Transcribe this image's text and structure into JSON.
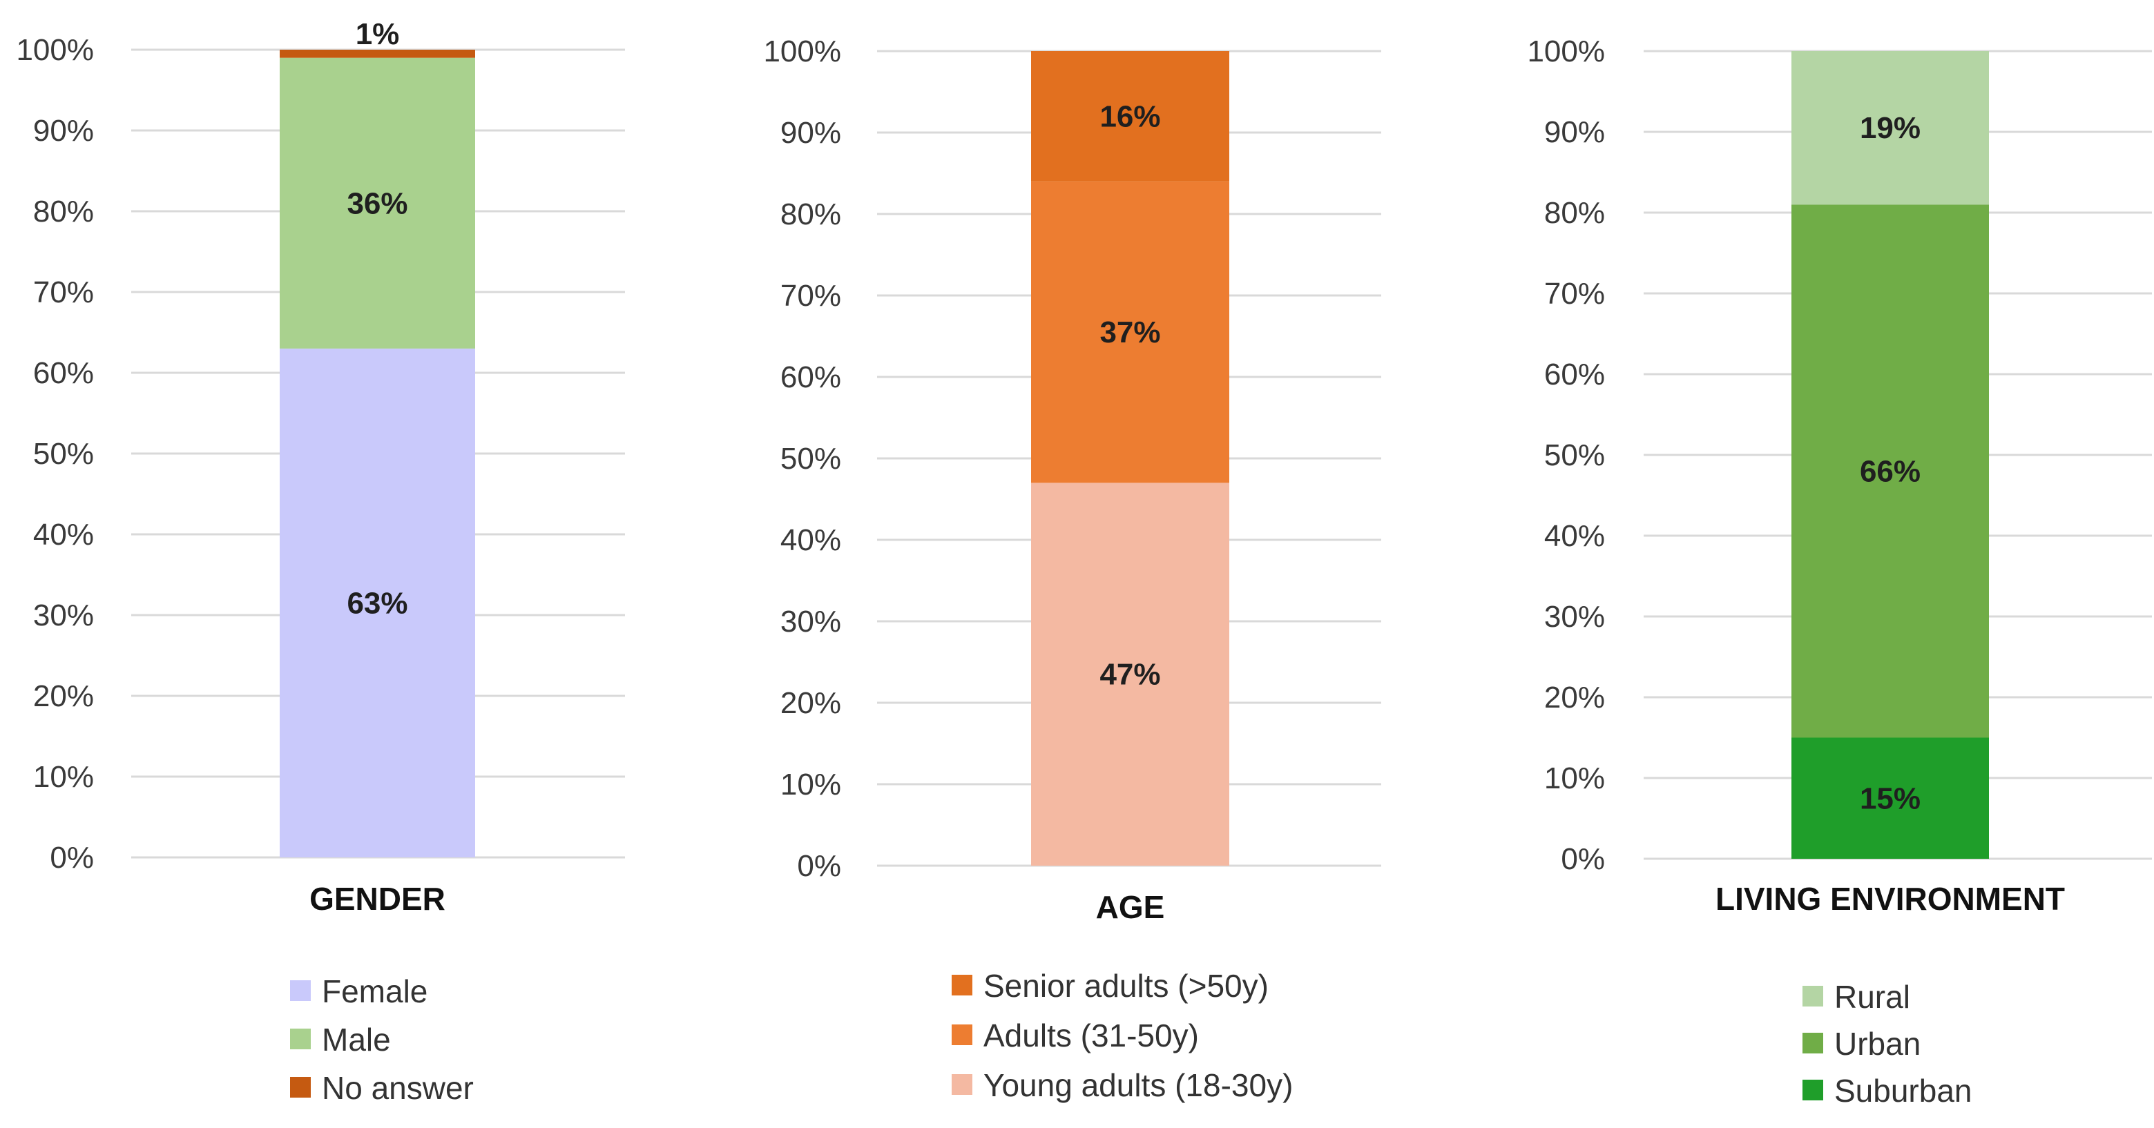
{
  "chart_data": [
    {
      "type": "bar",
      "stacked": true,
      "categories": [
        "GENDER"
      ],
      "series": [
        {
          "name": "Female",
          "values": [
            63
          ],
          "label": "63%",
          "color": "#c9c9fb"
        },
        {
          "name": "Male",
          "values": [
            36
          ],
          "label": "36%",
          "color": "#a9d18e"
        },
        {
          "name": "No answer",
          "values": [
            1
          ],
          "label": "1%",
          "color": "#c55a11"
        }
      ],
      "y_ticks": [
        "0%",
        "10%",
        "20%",
        "30%",
        "40%",
        "50%",
        "60%",
        "70%",
        "80%",
        "90%",
        "100%"
      ],
      "ylim": [
        0,
        100
      ],
      "grid": true,
      "legend": "bottom"
    },
    {
      "type": "bar",
      "stacked": true,
      "categories": [
        "AGE"
      ],
      "series": [
        {
          "name": "Senior adults (>50y)",
          "values": [
            16
          ],
          "label": "16%",
          "color": "#e2701f"
        },
        {
          "name": "Adults (31-50y)",
          "values": [
            37
          ],
          "label": "37%",
          "color": "#ed7d31"
        },
        {
          "name": "Young adults (18-30y)",
          "values": [
            47
          ],
          "label": "47%",
          "color": "#f4b9a2"
        }
      ],
      "y_ticks": [
        "0%",
        "10%",
        "20%",
        "30%",
        "40%",
        "50%",
        "60%",
        "70%",
        "80%",
        "90%",
        "100%"
      ],
      "ylim": [
        0,
        100
      ],
      "grid": true,
      "legend": "bottom"
    },
    {
      "type": "bar",
      "stacked": true,
      "categories": [
        "LIVING ENVIRONMENT"
      ],
      "series": [
        {
          "name": "Rural",
          "values": [
            19
          ],
          "label": "19%",
          "color": "#b4d5a4"
        },
        {
          "name": "Urban",
          "values": [
            66
          ],
          "label": "66%",
          "color": "#70ad47"
        },
        {
          "name": "Suburban",
          "values": [
            15
          ],
          "label": "15%",
          "color": "#1f9e2a"
        }
      ],
      "y_ticks": [
        "0%",
        "10%",
        "20%",
        "30%",
        "40%",
        "50%",
        "60%",
        "70%",
        "80%",
        "90%",
        "100%"
      ],
      "ylim": [
        0,
        100
      ],
      "grid": true,
      "legend": "bottom"
    }
  ]
}
